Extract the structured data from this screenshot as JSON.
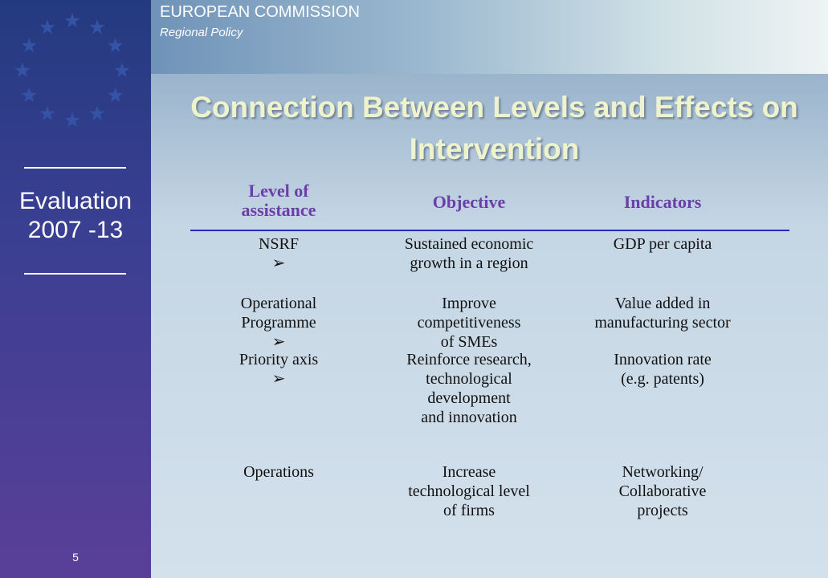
{
  "header": {
    "organization": "EUROPEAN COMMISSION",
    "unit": "Regional Policy"
  },
  "sidebar": {
    "label_lines": [
      "Evaluation",
      "2007 -13"
    ],
    "slide_number": "5"
  },
  "title": "Connection Between Levels and Effects on Intervention",
  "table": {
    "headers": [
      [
        "Level of",
        "assistance"
      ],
      [
        "Objective"
      ],
      [
        "Indicators"
      ]
    ],
    "marker": "➢",
    "rows": [
      {
        "cells": [
          [
            "NSRF"
          ],
          [
            "Sustained economic",
            "growth in a region"
          ],
          [
            "GDP per capita"
          ]
        ],
        "marked": true
      },
      {
        "cells": [
          [
            "Operational",
            "Programme"
          ],
          [
            "Improve",
            "competitiveness",
            "of SMEs"
          ],
          [
            "Value added in",
            "manufacturing sector"
          ]
        ],
        "marked": true
      },
      {
        "cells": [
          [
            "Priority axis"
          ],
          [
            "Reinforce research,",
            "technological",
            "development",
            "and innovation"
          ],
          [
            "Innovation rate",
            "(e.g. patents)"
          ]
        ],
        "marked": true
      },
      {
        "cells": [
          [
            "Operations"
          ],
          [
            "Increase",
            "technological level",
            "of firms"
          ],
          [
            "Networking/",
            "Collaborative",
            "projects"
          ]
        ],
        "marked": false
      }
    ]
  }
}
